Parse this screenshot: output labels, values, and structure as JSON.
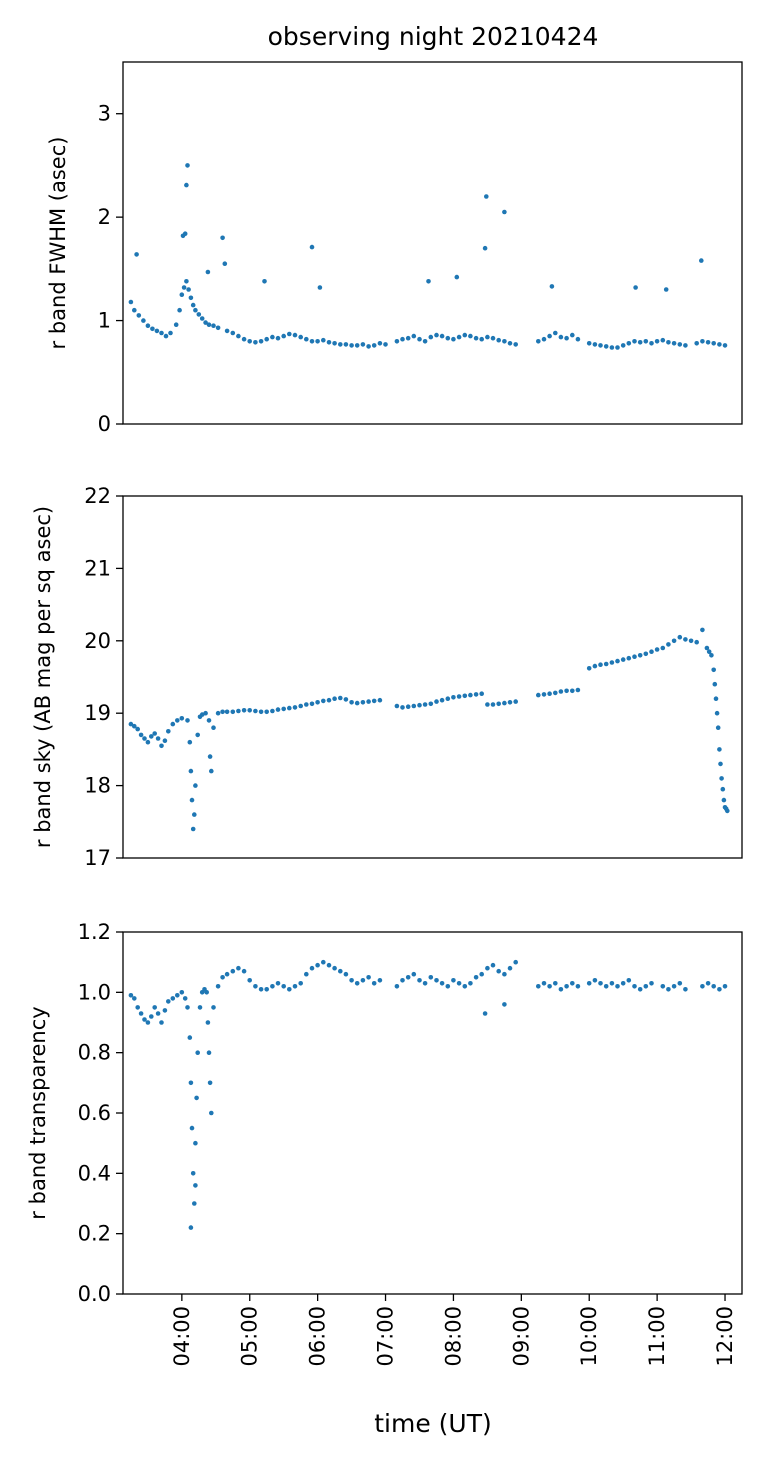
{
  "figure": {
    "title": "observing night 20210424",
    "xlabel": "time (UT)",
    "x_tick_labels": [
      "04:00",
      "05:00",
      "06:00",
      "07:00",
      "08:00",
      "09:00",
      "10:00",
      "11:00",
      "12:00"
    ],
    "marker_color": "#1f77b4"
  },
  "chart_data": [
    {
      "type": "scatter",
      "title": "observing night 20210424",
      "xlabel": "",
      "ylabel": "r band FWHM (asec)",
      "xlim": [
        "03:08",
        "12:15"
      ],
      "ylim": [
        0,
        3.5
      ],
      "yticks": [
        0,
        1,
        2,
        3
      ],
      "grid": false,
      "x_tick_labels_shown": false,
      "series": [
        {
          "x": [
            "03:15",
            "03:18",
            "03:22",
            "03:26",
            "03:30",
            "03:34",
            "03:38",
            "03:42",
            "03:46",
            "03:50",
            "03:55",
            "03:58",
            "04:00",
            "04:02",
            "04:04",
            "04:06",
            "04:08",
            "04:10",
            "04:12",
            "04:15",
            "04:18",
            "04:21",
            "04:24",
            "04:28",
            "04:32",
            "04:40",
            "04:45",
            "04:50",
            "04:55",
            "05:00",
            "05:05",
            "05:10",
            "05:15",
            "05:20",
            "05:25",
            "05:30",
            "05:35",
            "05:40",
            "05:45",
            "05:50",
            "05:55",
            "06:00",
            "06:05",
            "06:10",
            "06:15",
            "06:20",
            "06:25",
            "06:30",
            "06:35",
            "06:40",
            "06:45",
            "06:50",
            "06:55",
            "07:00",
            "07:10",
            "07:15",
            "07:20",
            "07:25",
            "07:30",
            "07:35",
            "07:40",
            "07:45",
            "07:50",
            "07:55",
            "08:00",
            "08:05",
            "08:10",
            "08:15",
            "08:20",
            "08:25",
            "08:30",
            "08:35",
            "08:40",
            "08:45",
            "08:50",
            "08:55",
            "09:15",
            "09:20",
            "09:25",
            "09:30",
            "09:35",
            "09:40",
            "09:45",
            "09:50",
            "10:00",
            "10:05",
            "10:10",
            "10:15",
            "10:20",
            "10:25",
            "10:30",
            "10:35",
            "10:40",
            "10:45",
            "10:50",
            "10:55",
            "11:00",
            "11:05",
            "11:10",
            "11:15",
            "11:20",
            "11:25",
            "11:35",
            "11:40",
            "11:45",
            "11:50",
            "11:55",
            "12:00",
            "03:20",
            "04:05",
            "04:04",
            "04:03",
            "04:36",
            "05:55",
            "08:29",
            "08:28",
            "08:45",
            "11:39",
            "05:13",
            "06:02",
            "07:38",
            "08:03",
            "09:27",
            "10:41",
            "11:08",
            "04:38",
            "04:01",
            "04:23"
          ],
          "y": [
            1.18,
            1.1,
            1.05,
            1.0,
            0.95,
            0.92,
            0.9,
            0.88,
            0.85,
            0.88,
            0.96,
            1.1,
            1.25,
            1.32,
            1.38,
            1.3,
            1.22,
            1.15,
            1.1,
            1.06,
            1.02,
            0.98,
            0.96,
            0.95,
            0.93,
            0.9,
            0.88,
            0.85,
            0.82,
            0.8,
            0.79,
            0.8,
            0.82,
            0.84,
            0.83,
            0.85,
            0.87,
            0.86,
            0.84,
            0.82,
            0.8,
            0.8,
            0.81,
            0.79,
            0.78,
            0.77,
            0.77,
            0.76,
            0.76,
            0.77,
            0.75,
            0.76,
            0.78,
            0.77,
            0.8,
            0.82,
            0.83,
            0.85,
            0.82,
            0.8,
            0.84,
            0.86,
            0.85,
            0.83,
            0.82,
            0.84,
            0.86,
            0.85,
            0.83,
            0.82,
            0.84,
            0.83,
            0.81,
            0.8,
            0.78,
            0.77,
            0.8,
            0.82,
            0.85,
            0.88,
            0.84,
            0.83,
            0.86,
            0.82,
            0.78,
            0.77,
            0.76,
            0.75,
            0.74,
            0.74,
            0.76,
            0.78,
            0.8,
            0.79,
            0.8,
            0.78,
            0.8,
            0.81,
            0.79,
            0.78,
            0.77,
            0.76,
            0.78,
            0.8,
            0.79,
            0.78,
            0.77,
            0.76,
            1.64,
            2.5,
            2.31,
            1.84,
            1.8,
            1.71,
            2.2,
            1.7,
            2.05,
            1.58,
            1.38,
            1.32,
            1.38,
            1.42,
            1.33,
            1.32,
            1.3,
            1.55,
            1.82,
            1.47
          ]
        }
      ]
    },
    {
      "type": "scatter",
      "title": "",
      "xlabel": "",
      "ylabel": "r band sky (AB mag per sq asec)",
      "xlim": [
        "03:08",
        "12:15"
      ],
      "ylim": [
        17,
        22
      ],
      "yticks": [
        17,
        18,
        19,
        20,
        21,
        22
      ],
      "grid": false,
      "x_tick_labels_shown": false,
      "series": [
        {
          "x": [
            "03:15",
            "03:18",
            "03:21",
            "03:24",
            "03:27",
            "03:30",
            "03:33",
            "03:36",
            "03:39",
            "03:42",
            "03:45",
            "03:48",
            "03:52",
            "03:56",
            "04:00",
            "04:05",
            "04:07",
            "04:08",
            "04:09",
            "04:10",
            "04:11",
            "04:12",
            "04:14",
            "04:16",
            "04:18",
            "04:21",
            "04:24",
            "04:25",
            "04:26",
            "04:28",
            "04:32",
            "04:36",
            "04:40",
            "04:45",
            "04:50",
            "04:55",
            "05:00",
            "05:05",
            "05:10",
            "05:15",
            "05:20",
            "05:25",
            "05:30",
            "05:35",
            "05:40",
            "05:45",
            "05:50",
            "05:55",
            "06:00",
            "06:05",
            "06:10",
            "06:15",
            "06:20",
            "06:25",
            "06:30",
            "06:35",
            "06:40",
            "06:45",
            "06:50",
            "06:55",
            "07:10",
            "07:15",
            "07:20",
            "07:25",
            "07:30",
            "07:35",
            "07:40",
            "07:45",
            "07:50",
            "07:55",
            "08:00",
            "08:05",
            "08:10",
            "08:15",
            "08:20",
            "08:25",
            "08:30",
            "08:35",
            "08:40",
            "08:45",
            "08:50",
            "08:55",
            "09:15",
            "09:20",
            "09:25",
            "09:30",
            "09:35",
            "09:40",
            "09:45",
            "09:50",
            "10:00",
            "10:05",
            "10:10",
            "10:15",
            "10:20",
            "10:25",
            "10:30",
            "10:35",
            "10:40",
            "10:45",
            "10:50",
            "10:55",
            "11:00",
            "11:05",
            "11:10",
            "11:15",
            "11:20",
            "11:25",
            "11:30",
            "11:35",
            "11:40",
            "11:44",
            "11:46",
            "11:48",
            "11:50",
            "11:51",
            "11:52",
            "11:53",
            "11:54",
            "11:55",
            "11:56",
            "11:57",
            "11:58",
            "11:59",
            "12:00",
            "12:01",
            "12:02"
          ],
          "y": [
            18.85,
            18.82,
            18.78,
            18.7,
            18.65,
            18.6,
            18.68,
            18.72,
            18.65,
            18.55,
            18.62,
            18.75,
            18.85,
            18.9,
            18.93,
            18.9,
            18.6,
            18.2,
            17.8,
            17.4,
            17.6,
            18.0,
            18.7,
            18.95,
            18.98,
            19.0,
            18.9,
            18.4,
            18.2,
            18.8,
            19.0,
            19.02,
            19.02,
            19.02,
            19.03,
            19.04,
            19.04,
            19.03,
            19.02,
            19.02,
            19.03,
            19.05,
            19.06,
            19.07,
            19.08,
            19.1,
            19.12,
            19.13,
            19.15,
            19.17,
            19.18,
            19.2,
            19.21,
            19.19,
            19.15,
            19.14,
            19.15,
            19.16,
            19.17,
            19.18,
            19.1,
            19.08,
            19.09,
            19.1,
            19.11,
            19.12,
            19.13,
            19.16,
            19.18,
            19.2,
            19.22,
            19.23,
            19.24,
            19.25,
            19.26,
            19.27,
            19.12,
            19.12,
            19.13,
            19.14,
            19.15,
            19.16,
            19.25,
            19.26,
            19.27,
            19.28,
            19.3,
            19.31,
            19.31,
            19.32,
            19.62,
            19.65,
            19.67,
            19.68,
            19.7,
            19.72,
            19.74,
            19.76,
            19.78,
            19.8,
            19.82,
            19.85,
            19.88,
            19.9,
            19.95,
            20.0,
            20.05,
            20.02,
            20.0,
            19.98,
            20.15,
            19.9,
            19.85,
            19.8,
            19.6,
            19.4,
            19.2,
            19.0,
            18.8,
            18.5,
            18.3,
            18.1,
            17.95,
            17.8,
            17.7,
            17.68,
            17.65
          ]
        }
      ]
    },
    {
      "type": "scatter",
      "title": "",
      "xlabel": "time (UT)",
      "ylabel": "r band transparency",
      "xlim": [
        "03:08",
        "12:15"
      ],
      "ylim": [
        0.0,
        1.2
      ],
      "yticks": [
        0.0,
        0.2,
        0.4,
        0.6,
        0.8,
        1.0,
        1.2
      ],
      "x_tick_labels": [
        "04:00",
        "05:00",
        "06:00",
        "07:00",
        "08:00",
        "09:00",
        "10:00",
        "11:00",
        "12:00"
      ],
      "grid": false,
      "series": [
        {
          "x": [
            "03:15",
            "03:18",
            "03:21",
            "03:24",
            "03:27",
            "03:30",
            "03:33",
            "03:36",
            "03:39",
            "03:42",
            "03:45",
            "03:48",
            "03:52",
            "03:56",
            "04:00",
            "04:03",
            "04:05",
            "04:07",
            "04:08",
            "04:09",
            "04:10",
            "04:11",
            "04:12",
            "04:13",
            "04:14",
            "04:16",
            "04:18",
            "04:20",
            "04:22",
            "04:23",
            "04:24",
            "04:25",
            "04:26",
            "04:28",
            "04:32",
            "04:36",
            "04:40",
            "04:45",
            "04:50",
            "04:55",
            "05:00",
            "05:05",
            "05:10",
            "05:15",
            "05:20",
            "05:25",
            "05:30",
            "05:35",
            "05:40",
            "05:45",
            "05:50",
            "05:55",
            "06:00",
            "06:05",
            "06:10",
            "06:15",
            "06:20",
            "06:25",
            "06:30",
            "06:35",
            "06:40",
            "06:45",
            "06:50",
            "06:55",
            "07:10",
            "07:15",
            "07:20",
            "07:25",
            "07:30",
            "07:35",
            "07:40",
            "07:45",
            "07:50",
            "07:55",
            "08:00",
            "08:05",
            "08:10",
            "08:15",
            "08:20",
            "08:25",
            "08:30",
            "08:35",
            "08:40",
            "08:45",
            "08:50",
            "08:55",
            "09:15",
            "09:20",
            "09:25",
            "09:30",
            "09:35",
            "09:40",
            "09:45",
            "09:50",
            "10:00",
            "10:05",
            "10:10",
            "10:15",
            "10:20",
            "10:25",
            "10:30",
            "10:35",
            "10:40",
            "10:45",
            "10:50",
            "10:55",
            "11:05",
            "11:10",
            "11:15",
            "11:20",
            "11:25",
            "11:40",
            "11:45",
            "11:50",
            "11:55",
            "12:00",
            "04:08",
            "04:12",
            "08:28",
            "08:45"
          ],
          "y": [
            0.99,
            0.98,
            0.95,
            0.93,
            0.91,
            0.9,
            0.92,
            0.95,
            0.93,
            0.9,
            0.94,
            0.97,
            0.98,
            0.99,
            1.0,
            0.98,
            0.95,
            0.85,
            0.7,
            0.55,
            0.4,
            0.3,
            0.5,
            0.65,
            0.8,
            0.95,
            1.0,
            1.01,
            1.0,
            0.9,
            0.8,
            0.7,
            0.6,
            0.95,
            1.02,
            1.05,
            1.06,
            1.07,
            1.08,
            1.07,
            1.04,
            1.02,
            1.01,
            1.01,
            1.02,
            1.03,
            1.02,
            1.01,
            1.02,
            1.03,
            1.06,
            1.08,
            1.09,
            1.1,
            1.09,
            1.08,
            1.07,
            1.06,
            1.04,
            1.03,
            1.04,
            1.05,
            1.03,
            1.04,
            1.02,
            1.04,
            1.05,
            1.06,
            1.04,
            1.03,
            1.05,
            1.04,
            1.03,
            1.02,
            1.04,
            1.03,
            1.02,
            1.03,
            1.05,
            1.06,
            1.08,
            1.09,
            1.07,
            1.06,
            1.08,
            1.1,
            1.02,
            1.03,
            1.02,
            1.03,
            1.01,
            1.02,
            1.03,
            1.02,
            1.03,
            1.04,
            1.03,
            1.02,
            1.03,
            1.02,
            1.03,
            1.04,
            1.02,
            1.01,
            1.02,
            1.03,
            1.02,
            1.01,
            1.02,
            1.03,
            1.01,
            1.02,
            1.03,
            1.02,
            1.01,
            1.02,
            0.22,
            0.36,
            0.93,
            0.96
          ]
        }
      ]
    }
  ]
}
